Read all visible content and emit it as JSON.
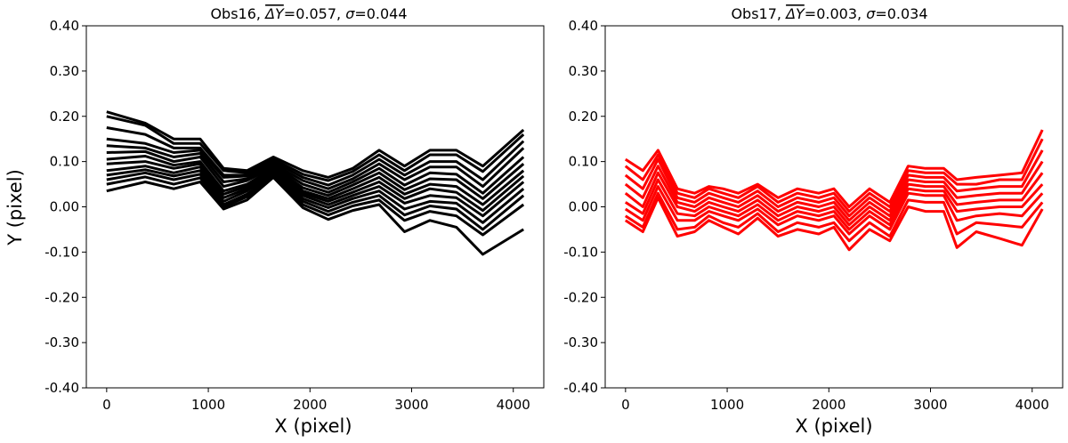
{
  "chart_data": [
    {
      "type": "line",
      "title": "Obs16, ΔY̅=0.057, σ=0.044",
      "title_parts": {
        "prefix": "Obs16, ",
        "symbol": "ΔY",
        "equals": "=0.057, ",
        "sigma": "σ",
        "sigma_value": "=0.044"
      },
      "xlabel": "X (pixel)",
      "ylabel": "Y (pixel)",
      "xlim": [
        -200,
        4300
      ],
      "ylim": [
        -0.4,
        0.4
      ],
      "xticks": [
        0,
        1000,
        2000,
        3000,
        4000
      ],
      "xtick_labels": [
        "0",
        "1000",
        "2000",
        "3000",
        "4000"
      ],
      "yticks": [
        0.4,
        0.3,
        0.2,
        0.1,
        0.0,
        -0.1,
        -0.2,
        -0.3,
        -0.4
      ],
      "ytick_labels": [
        "0.40",
        "0.30",
        "0.20",
        "0.10",
        "0.00",
        "-0.10",
        "-0.20",
        "-0.30",
        "-0.40"
      ],
      "grid": false,
      "color": "#000000",
      "x": [
        0,
        380,
        660,
        920,
        1150,
        1380,
        1640,
        1930,
        2180,
        2420,
        2680,
        2930,
        3180,
        3440,
        3700,
        4100
      ],
      "series": [
        {
          "values": [
            0.21,
            0.185,
            0.15,
            0.15,
            0.085,
            0.08,
            0.11,
            0.08,
            0.065,
            0.085,
            0.125,
            0.09,
            0.125,
            0.125,
            0.09,
            0.17
          ]
        },
        {
          "values": [
            0.2,
            0.18,
            0.14,
            0.14,
            0.08,
            0.075,
            0.105,
            0.072,
            0.058,
            0.078,
            0.115,
            0.08,
            0.115,
            0.115,
            0.078,
            0.16
          ]
        },
        {
          "values": [
            0.175,
            0.16,
            0.13,
            0.13,
            0.07,
            0.07,
            0.1,
            0.065,
            0.048,
            0.07,
            0.105,
            0.07,
            0.1,
            0.1,
            0.06,
            0.145
          ]
        },
        {
          "values": [
            0.15,
            0.14,
            0.12,
            0.125,
            0.065,
            0.068,
            0.095,
            0.058,
            0.04,
            0.062,
            0.095,
            0.06,
            0.088,
            0.088,
            0.045,
            0.13
          ]
        },
        {
          "values": [
            0.135,
            0.13,
            0.11,
            0.118,
            0.055,
            0.062,
            0.092,
            0.05,
            0.032,
            0.055,
            0.085,
            0.048,
            0.075,
            0.072,
            0.03,
            0.11
          ]
        },
        {
          "values": [
            0.12,
            0.122,
            0.1,
            0.11,
            0.045,
            0.058,
            0.088,
            0.042,
            0.025,
            0.048,
            0.075,
            0.038,
            0.062,
            0.06,
            0.018,
            0.095
          ]
        },
        {
          "values": [
            0.105,
            0.112,
            0.092,
            0.1,
            0.035,
            0.05,
            0.085,
            0.035,
            0.018,
            0.04,
            0.065,
            0.028,
            0.05,
            0.045,
            0.005,
            0.08
          ]
        },
        {
          "values": [
            0.095,
            0.1,
            0.085,
            0.095,
            0.028,
            0.045,
            0.082,
            0.03,
            0.012,
            0.032,
            0.055,
            0.018,
            0.04,
            0.032,
            -0.008,
            0.068
          ]
        },
        {
          "values": [
            0.08,
            0.09,
            0.075,
            0.088,
            0.02,
            0.04,
            0.078,
            0.025,
            0.005,
            0.025,
            0.045,
            0.008,
            0.025,
            0.02,
            -0.02,
            0.055
          ]
        },
        {
          "values": [
            0.07,
            0.082,
            0.068,
            0.08,
            0.012,
            0.035,
            0.075,
            0.018,
            -0.002,
            0.018,
            0.035,
            -0.005,
            0.012,
            0.008,
            -0.035,
            0.04
          ]
        },
        {
          "values": [
            0.06,
            0.075,
            0.06,
            0.072,
            0.005,
            0.028,
            0.072,
            0.012,
            -0.01,
            0.01,
            0.025,
            -0.018,
            0.002,
            -0.005,
            -0.05,
            0.025
          ]
        },
        {
          "values": [
            0.05,
            0.066,
            0.05,
            0.064,
            0.0,
            0.022,
            0.068,
            0.005,
            -0.018,
            0.002,
            0.015,
            -0.03,
            -0.01,
            -0.02,
            -0.062,
            0.005
          ]
        },
        {
          "values": [
            0.035,
            0.055,
            0.04,
            0.055,
            -0.005,
            0.015,
            0.065,
            -0.002,
            -0.028,
            -0.008,
            0.005,
            -0.055,
            -0.03,
            -0.045,
            -0.105,
            -0.05
          ]
        }
      ]
    },
    {
      "type": "line",
      "title": "Obs17, ΔY̅=0.003, σ=0.034",
      "title_parts": {
        "prefix": "Obs17, ",
        "symbol": "ΔY",
        "equals": "=0.003, ",
        "sigma": "σ",
        "sigma_value": "=0.034"
      },
      "xlabel": "X (pixel)",
      "ylabel": "",
      "xlim": [
        -200,
        4300
      ],
      "ylim": [
        -0.4,
        0.4
      ],
      "xticks": [
        0,
        1000,
        2000,
        3000,
        4000
      ],
      "xtick_labels": [
        "0",
        "1000",
        "2000",
        "3000",
        "4000"
      ],
      "yticks": [
        0.4,
        0.3,
        0.2,
        0.1,
        0.0,
        -0.1,
        -0.2,
        -0.3,
        -0.4
      ],
      "ytick_labels": [
        "0.40",
        "0.30",
        "0.20",
        "0.10",
        "0.00",
        "-0.10",
        "-0.20",
        "-0.30",
        "-0.40"
      ],
      "grid": false,
      "color": "#ff0000",
      "x": [
        0,
        170,
        320,
        510,
        680,
        820,
        960,
        1110,
        1300,
        1500,
        1690,
        1900,
        2050,
        2200,
        2400,
        2600,
        2780,
        2950,
        3130,
        3260,
        3450,
        3680,
        3900,
        4100
      ],
      "series": [
        {
          "values": [
            0.105,
            0.08,
            0.125,
            0.04,
            0.03,
            0.045,
            0.04,
            0.03,
            0.05,
            0.02,
            0.04,
            0.03,
            0.04,
            0.0,
            0.04,
            0.01,
            0.09,
            0.085,
            0.085,
            0.06,
            0.065,
            0.07,
            0.075,
            0.17
          ]
        },
        {
          "values": [
            0.09,
            0.06,
            0.115,
            0.03,
            0.02,
            0.04,
            0.03,
            0.02,
            0.045,
            0.01,
            0.03,
            0.02,
            0.03,
            -0.01,
            0.03,
            0.0,
            0.08,
            0.075,
            0.075,
            0.05,
            0.05,
            0.06,
            0.06,
            0.15
          ]
        },
        {
          "values": [
            0.07,
            0.04,
            0.105,
            0.02,
            0.01,
            0.03,
            0.02,
            0.01,
            0.035,
            0.0,
            0.02,
            0.01,
            0.02,
            -0.02,
            0.02,
            -0.01,
            0.07,
            0.065,
            0.065,
            0.035,
            0.04,
            0.045,
            0.045,
            0.125
          ]
        },
        {
          "values": [
            0.05,
            0.02,
            0.09,
            0.01,
            0.0,
            0.02,
            0.01,
            0.0,
            0.025,
            -0.01,
            0.01,
            0.0,
            0.01,
            -0.03,
            0.01,
            -0.02,
            0.06,
            0.055,
            0.055,
            0.02,
            0.025,
            0.03,
            0.03,
            0.1
          ]
        },
        {
          "values": [
            0.03,
            0.0,
            0.075,
            0.0,
            -0.01,
            0.01,
            0.0,
            -0.01,
            0.015,
            -0.02,
            0.0,
            -0.01,
            0.0,
            -0.04,
            0.0,
            -0.03,
            0.05,
            0.045,
            0.045,
            0.005,
            0.01,
            0.015,
            0.015,
            0.075
          ]
        },
        {
          "values": [
            0.01,
            -0.015,
            0.06,
            -0.015,
            -0.02,
            0.0,
            -0.01,
            -0.02,
            0.005,
            -0.03,
            -0.01,
            -0.02,
            -0.01,
            -0.05,
            -0.01,
            -0.04,
            0.04,
            0.035,
            0.035,
            -0.01,
            -0.005,
            0.0,
            0.0,
            0.05
          ]
        },
        {
          "values": [
            -0.005,
            -0.03,
            0.045,
            -0.03,
            -0.03,
            -0.01,
            -0.02,
            -0.03,
            -0.005,
            -0.04,
            -0.02,
            -0.03,
            -0.02,
            -0.06,
            -0.02,
            -0.05,
            0.03,
            0.025,
            0.025,
            -0.03,
            -0.02,
            -0.015,
            -0.02,
            0.03
          ]
        },
        {
          "values": [
            -0.02,
            -0.045,
            0.03,
            -0.05,
            -0.045,
            -0.02,
            -0.035,
            -0.045,
            -0.015,
            -0.055,
            -0.035,
            -0.045,
            -0.035,
            -0.075,
            -0.035,
            -0.065,
            0.015,
            0.01,
            0.01,
            -0.06,
            -0.035,
            -0.04,
            -0.045,
            0.01
          ]
        },
        {
          "values": [
            -0.03,
            -0.055,
            0.02,
            -0.065,
            -0.055,
            -0.03,
            -0.045,
            -0.06,
            -0.025,
            -0.065,
            -0.05,
            -0.06,
            -0.045,
            -0.095,
            -0.05,
            -0.075,
            0.0,
            -0.01,
            -0.01,
            -0.09,
            -0.055,
            -0.07,
            -0.085,
            -0.005
          ]
        }
      ]
    }
  ]
}
